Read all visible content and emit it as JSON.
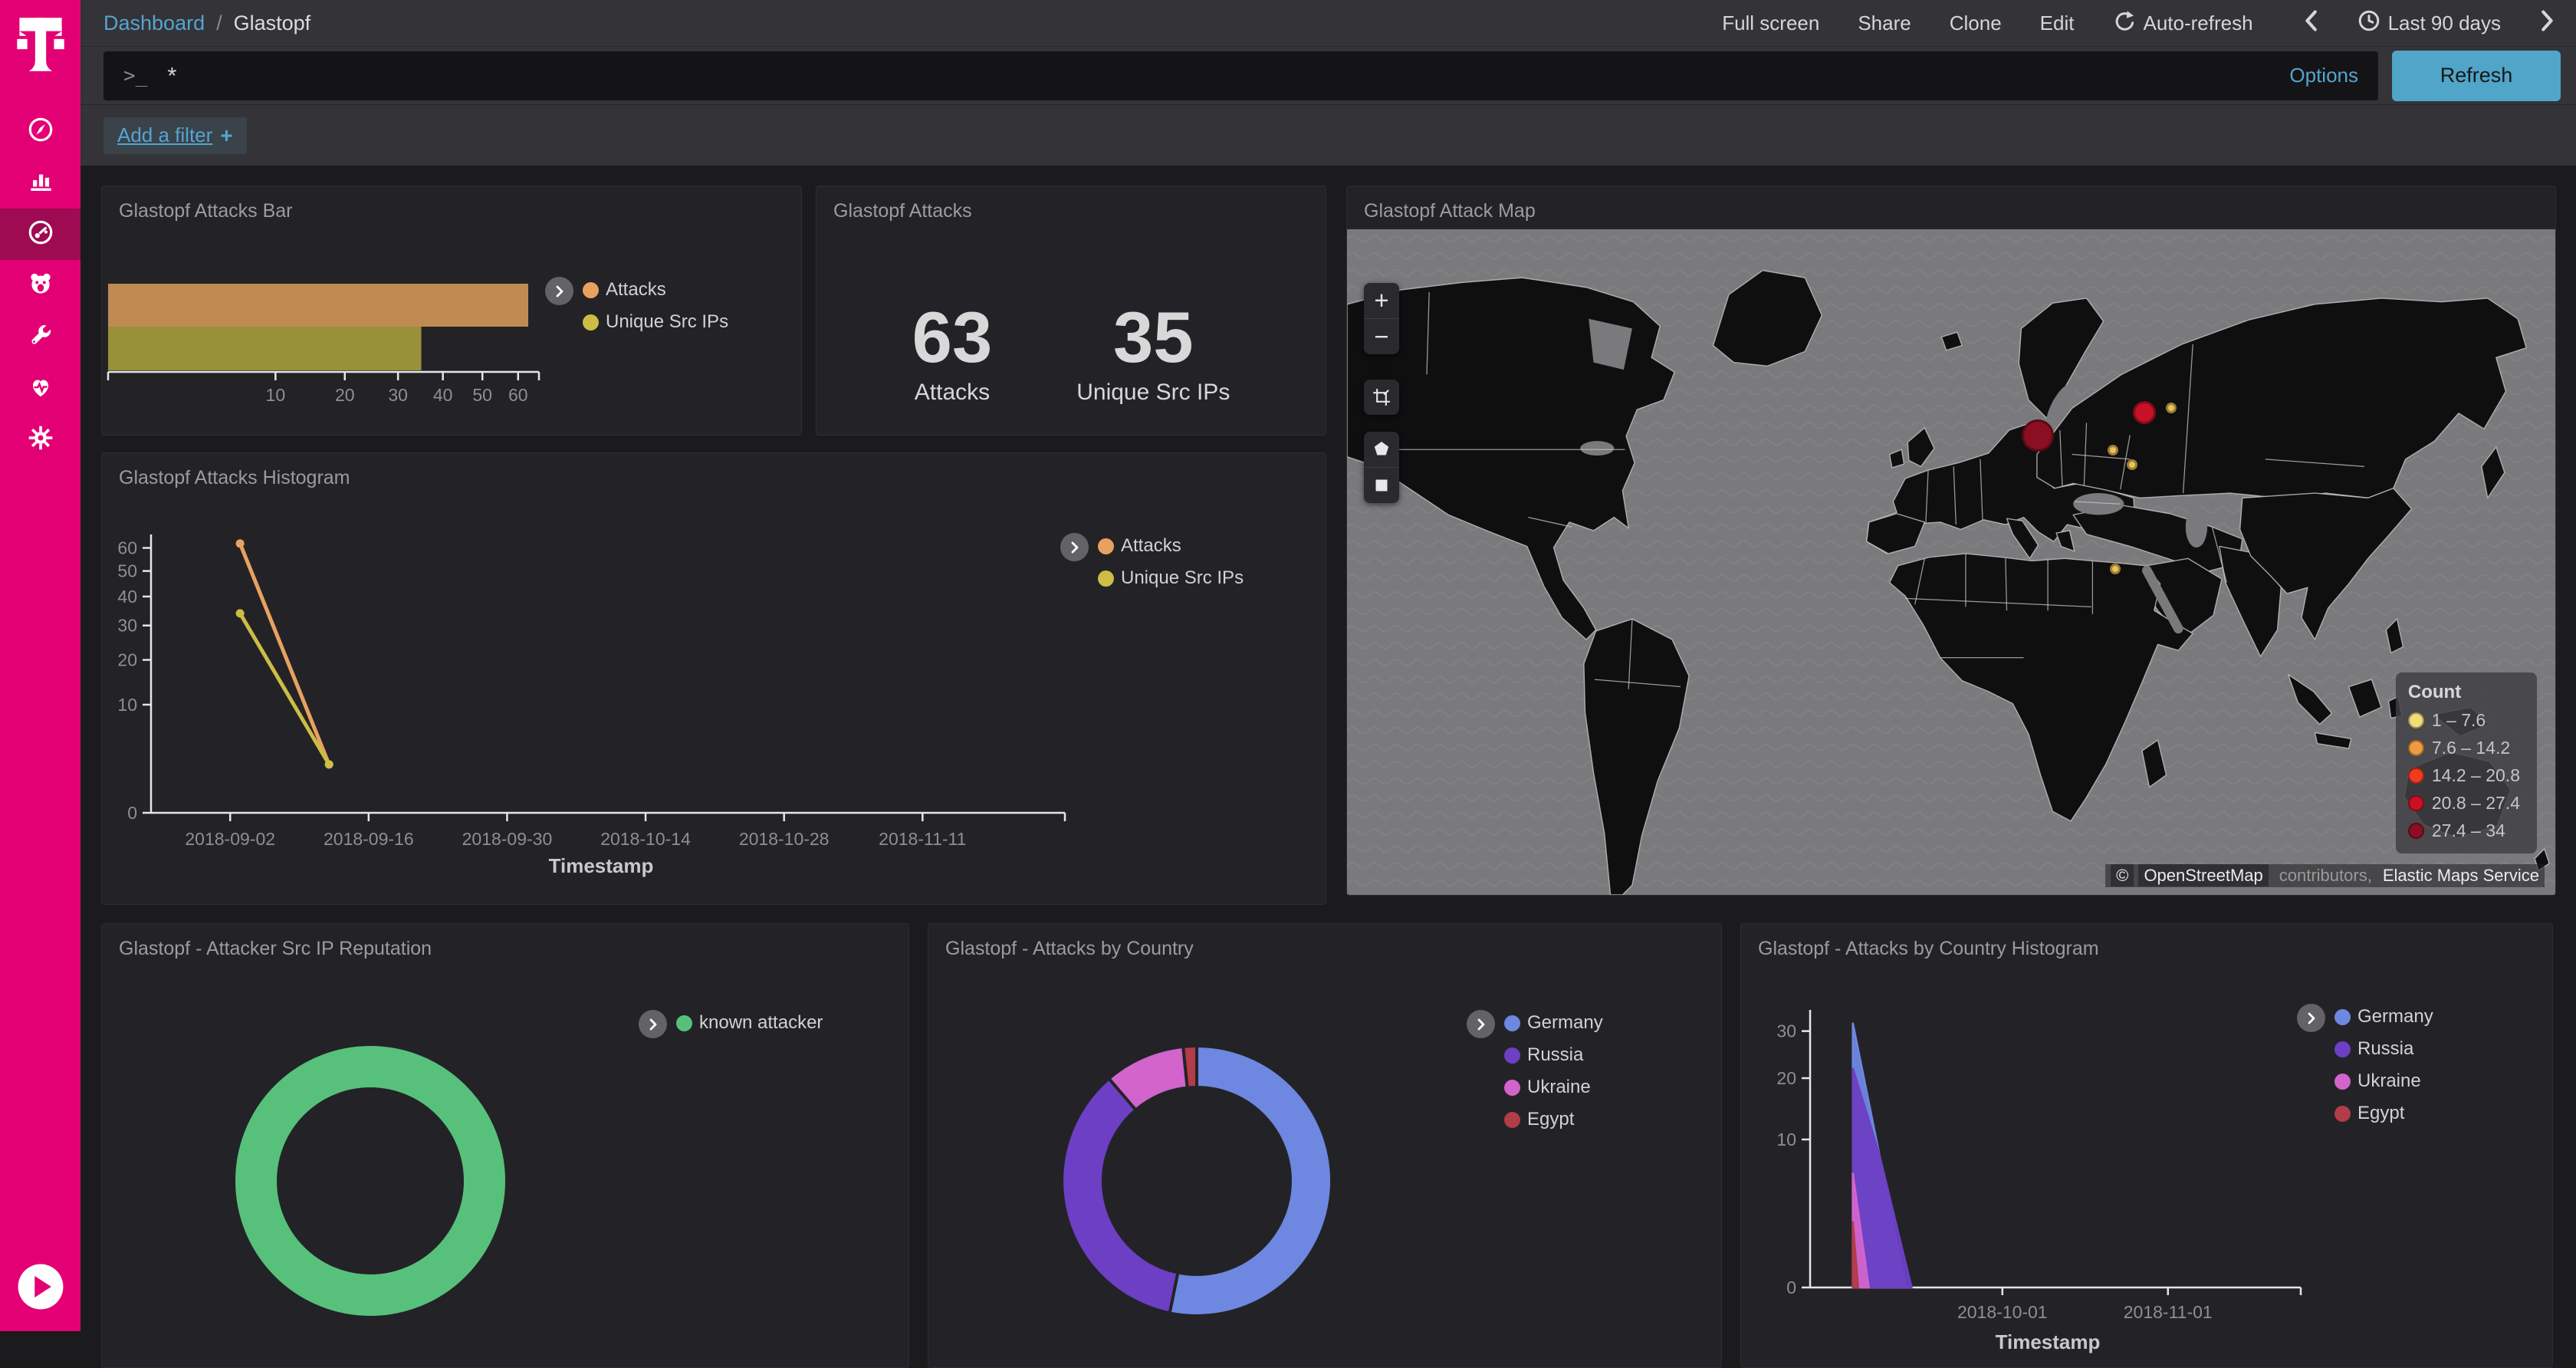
{
  "colors": {
    "accent": "#e20074",
    "link": "#56a4cf",
    "refresh_button": "#50a5c8"
  },
  "sidebar": {
    "logo": "telekom-t-logo",
    "icons": [
      "compass-icon",
      "bar-chart-icon",
      "gauge-icon",
      "bear-icon",
      "wrench-icon",
      "heartbeat-icon",
      "gear-icon"
    ],
    "active_index": 2,
    "collapse_icon": "play-circle-icon"
  },
  "topbar": {
    "breadcrumb": {
      "link": "Dashboard",
      "separator": "/",
      "current": "Glastopf"
    },
    "actions": [
      "Full screen",
      "Share",
      "Clone",
      "Edit"
    ],
    "auto_refresh_label": "Auto-refresh",
    "time_range_label": "Last 90 days"
  },
  "query_bar": {
    "prompt": ">_",
    "value": "*",
    "options_label": "Options",
    "refresh_label": "Refresh"
  },
  "filter_bar": {
    "label": "Add a filter",
    "plus": "+"
  },
  "panels": {
    "attacks_metric": {
      "title": "Glastopf Attacks",
      "metrics": [
        {
          "value": "63",
          "label": "Attacks"
        },
        {
          "value": "35",
          "label": "Unique Src IPs"
        }
      ]
    }
  },
  "chart_data": [
    {
      "id": "attacks_bar",
      "type": "bar",
      "title": "Glastopf Attacks Bar",
      "orientation": "horizontal",
      "x_scale": "sqrt",
      "xlim": [
        0,
        63
      ],
      "x_ticks": [
        10,
        20,
        30,
        40,
        50,
        60
      ],
      "categories": [
        "Attacks",
        "Unique Src IPs"
      ],
      "values": [
        63,
        35
      ],
      "colors": [
        "#bf8b53",
        "#99903a"
      ],
      "legend": {
        "items": [
          {
            "label": "Attacks",
            "color": "#e8a15f"
          },
          {
            "label": "Unique Src IPs",
            "color": "#cbbd45"
          }
        ]
      }
    },
    {
      "id": "attacks_histogram",
      "type": "line",
      "title": "Glastopf Attacks Histogram",
      "xlabel": "Timestamp",
      "y_scale": "sqrt",
      "ylim": [
        0,
        63
      ],
      "y_ticks": [
        0,
        10,
        20,
        30,
        40,
        50,
        60
      ],
      "x_domain": [
        "2018-08-25",
        "2018-11-24"
      ],
      "x_ticks": [
        "2018-09-02",
        "2018-09-16",
        "2018-09-30",
        "2018-10-14",
        "2018-10-28",
        "2018-11-11"
      ],
      "series": [
        {
          "name": "Attacks",
          "color": "#e8a15f",
          "points": [
            [
              "2018-09-03",
              62
            ],
            [
              "2018-09-12",
              2
            ]
          ]
        },
        {
          "name": "Unique Src IPs",
          "color": "#cbbd45",
          "points": [
            [
              "2018-09-03",
              34
            ],
            [
              "2018-09-12",
              2
            ]
          ]
        }
      ]
    },
    {
      "id": "src_ip_reputation",
      "type": "pie",
      "donut": true,
      "title": "Glastopf - Attacker Src IP Reputation",
      "slices": [
        {
          "label": "known attacker",
          "value": 35,
          "color": "#57c17b"
        }
      ]
    },
    {
      "id": "attacks_by_country",
      "type": "pie",
      "donut": true,
      "title": "Glastopf - Attacks by Country",
      "slices": [
        {
          "label": "Germany",
          "value": 33,
          "color": "#6e87e0"
        },
        {
          "label": "Russia",
          "value": 22,
          "color": "#6d3fc4"
        },
        {
          "label": "Ukraine",
          "value": 6,
          "color": "#d264cc"
        },
        {
          "label": "Egypt",
          "value": 1,
          "color": "#b23c48"
        }
      ]
    },
    {
      "id": "attacks_by_country_histogram",
      "type": "area",
      "title": "Glastopf - Attacks by Country Histogram",
      "xlabel": "Timestamp",
      "y_scale": "sqrt",
      "ylim": [
        0,
        32.5
      ],
      "y_ticks": [
        0,
        10,
        20,
        30
      ],
      "x_domain": [
        "2018-08-26",
        "2018-11-23"
      ],
      "x_ticks": [
        "2018-10-01",
        "2018-11-01"
      ],
      "series": [
        {
          "name": "Germany",
          "color": "#6e87e0",
          "points": [
            [
              "2018-09-03",
              32
            ],
            [
              "2018-09-13",
              0
            ]
          ]
        },
        {
          "name": "Russia",
          "color": "#6d3fc4",
          "points": [
            [
              "2018-09-03",
              22
            ],
            [
              "2018-09-08",
              8
            ],
            [
              "2018-09-14",
              0
            ]
          ]
        },
        {
          "name": "Ukraine",
          "color": "#d264cc",
          "points": [
            [
              "2018-09-03",
              6
            ],
            [
              "2018-09-06",
              0
            ]
          ]
        },
        {
          "name": "Egypt",
          "color": "#b23c48",
          "points": [
            [
              "2018-09-03",
              2
            ],
            [
              "2018-09-04",
              0
            ]
          ]
        }
      ]
    },
    {
      "id": "attack_map",
      "type": "map",
      "title": "Glastopf Attack Map",
      "controls": {
        "zoom_in": "+",
        "zoom_out": "−"
      },
      "legend": {
        "title": "Count",
        "buckets": [
          {
            "range": "1 – 7.6",
            "color": "#f2dc79"
          },
          {
            "range": "7.6 – 14.2",
            "color": "#ef9b3f"
          },
          {
            "range": "14.2 – 20.8",
            "color": "#f23a1f"
          },
          {
            "range": "20.8 – 27.4",
            "color": "#c81126"
          },
          {
            "range": "27.4 – 34",
            "color": "#8c0e23"
          }
        ]
      },
      "points": [
        {
          "x_pct": 57.2,
          "y_pct": 31.0,
          "d": 42,
          "color": "#8c0e23"
        },
        {
          "x_pct": 66.0,
          "y_pct": 27.5,
          "d": 30,
          "color": "#c81126"
        },
        {
          "x_pct": 68.2,
          "y_pct": 26.9,
          "d": 14,
          "color": "#ecc257"
        },
        {
          "x_pct": 63.4,
          "y_pct": 33.2,
          "d": 14,
          "color": "#ecc257"
        },
        {
          "x_pct": 65.0,
          "y_pct": 35.4,
          "d": 14,
          "color": "#ecc257"
        },
        {
          "x_pct": 63.6,
          "y_pct": 51.0,
          "d": 14,
          "color": "#ecc257"
        }
      ],
      "attribution": {
        "prefix": "©",
        "link1": "OpenStreetMap",
        "middle": "contributors,",
        "link2": "Elastic Maps Service"
      }
    }
  ]
}
